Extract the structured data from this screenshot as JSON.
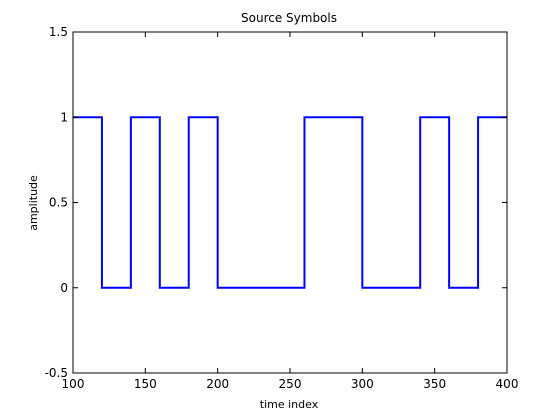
{
  "chart_data": {
    "type": "line",
    "title": "Source Symbols",
    "xlabel": "time index",
    "ylabel": "amplitude",
    "xlim": [
      100,
      400
    ],
    "ylim": [
      -0.5,
      1.5
    ],
    "x_ticks": [
      100,
      150,
      200,
      250,
      300,
      350,
      400
    ],
    "y_ticks": [
      -0.5,
      0,
      0.5,
      1,
      1.5
    ],
    "x_tick_labels": [
      "100",
      "150",
      "200",
      "250",
      "300",
      "350",
      "400"
    ],
    "y_tick_labels": [
      "-0.5",
      "0",
      "0.5",
      "1",
      "1.5"
    ],
    "grid": false,
    "line_color": "#0000ff",
    "series": [
      {
        "x": [
          100,
          120,
          120,
          140,
          140,
          160,
          160,
          180,
          180,
          200,
          200,
          260,
          260,
          300,
          300,
          340,
          340,
          360,
          360,
          380,
          380,
          400
        ],
        "y": [
          1,
          1,
          0,
          0,
          1,
          1,
          0,
          0,
          1,
          1,
          0,
          0,
          1,
          1,
          0,
          0,
          1,
          1,
          0,
          0,
          1,
          1
        ]
      }
    ]
  }
}
